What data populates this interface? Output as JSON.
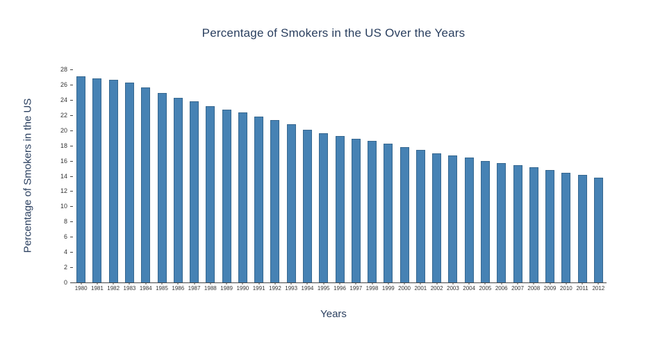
{
  "chart_data": {
    "type": "bar",
    "title": "Percentage of Smokers in the US Over the Years",
    "xlabel": "Years",
    "ylabel": "Percentage of Smokers in the US",
    "ylim": [
      0,
      28
    ],
    "ytick_step": 2,
    "grid": false,
    "legend": "none",
    "bar_color": "#4682b4",
    "categories": [
      "1980",
      "1981",
      "1982",
      "1983",
      "1984",
      "1985",
      "1986",
      "1987",
      "1988",
      "1989",
      "1990",
      "1991",
      "1992",
      "1993",
      "1994",
      "1995",
      "1996",
      "1997",
      "1998",
      "1999",
      "2000",
      "2001",
      "2002",
      "2003",
      "2004",
      "2005",
      "2006",
      "2007",
      "2008",
      "2009",
      "2010",
      "2011",
      "2012"
    ],
    "values": [
      27.1,
      26.8,
      26.6,
      26.3,
      25.6,
      24.9,
      24.3,
      23.8,
      23.2,
      22.7,
      22.3,
      21.8,
      21.3,
      20.8,
      20.1,
      19.6,
      19.2,
      18.9,
      18.6,
      18.2,
      17.8,
      17.4,
      17.0,
      16.7,
      16.4,
      16.0,
      15.7,
      15.4,
      15.1,
      14.8,
      14.4,
      14.1,
      13.8
    ]
  }
}
